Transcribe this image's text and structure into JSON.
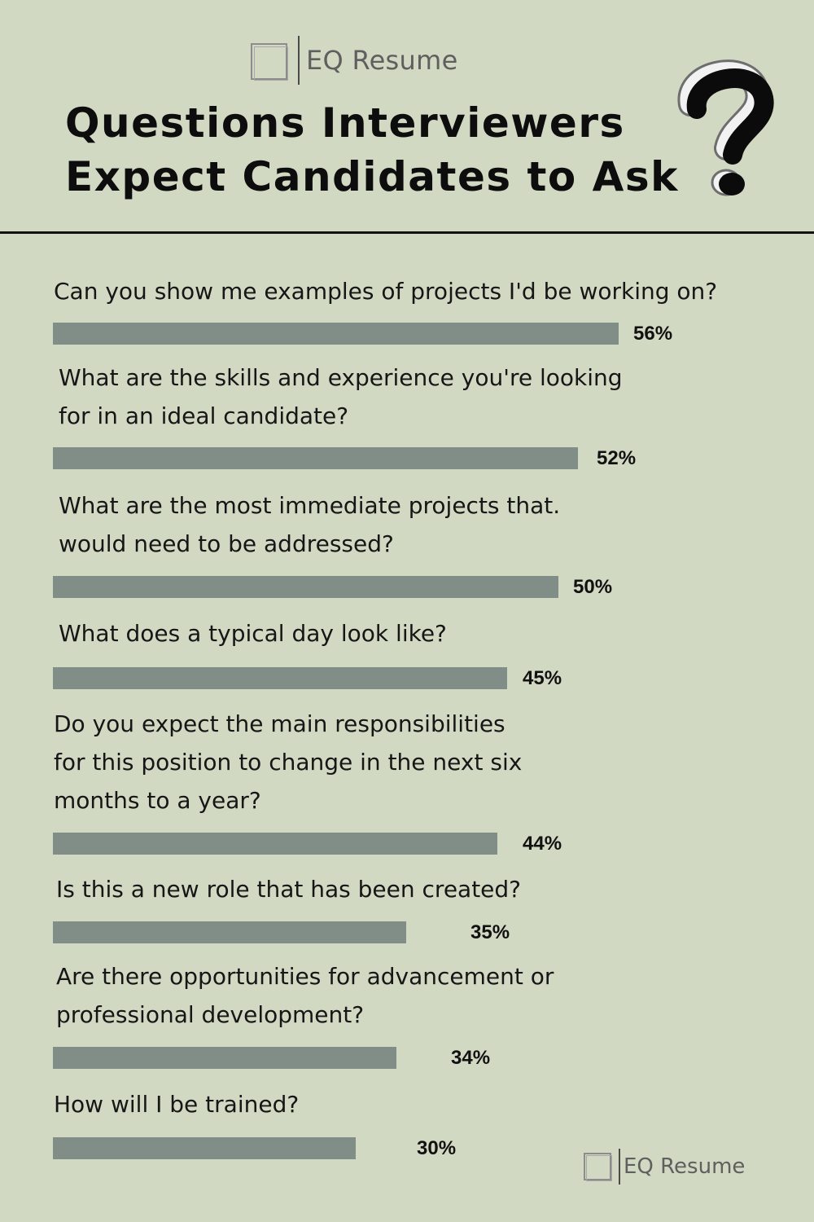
{
  "brand": {
    "name": "EQ Resume"
  },
  "title": {
    "line1": "Questions Interviewers",
    "line2": "Expect Candidates to Ask"
  },
  "chart_data": {
    "type": "bar",
    "orientation": "horizontal",
    "title": "Questions Interviewers Expect Candidates to Ask",
    "categories": [
      "Can you show me examples of projects I'd be working on?",
      "What are the skills and experience you're looking\nfor in an ideal candidate?",
      "What are the most immediate projects that.\nwould need to be addressed?",
      "What does a typical day look like?",
      "Do you expect the main responsibilities\nfor this position to change in the next six\nmonths to a year?",
      "Is this a new role that has been created?",
      "Are there opportunities for advancement or\nprofessional development?",
      "How will I be trained?"
    ],
    "values": [
      56,
      52,
      50,
      45,
      44,
      35,
      34,
      30
    ],
    "value_labels": [
      "56%",
      "52%",
      "50%",
      "45%",
      "44%",
      "35%",
      "34%",
      "30%"
    ],
    "bar_color": "#808e87",
    "background_color": "#d2d9c3"
  }
}
